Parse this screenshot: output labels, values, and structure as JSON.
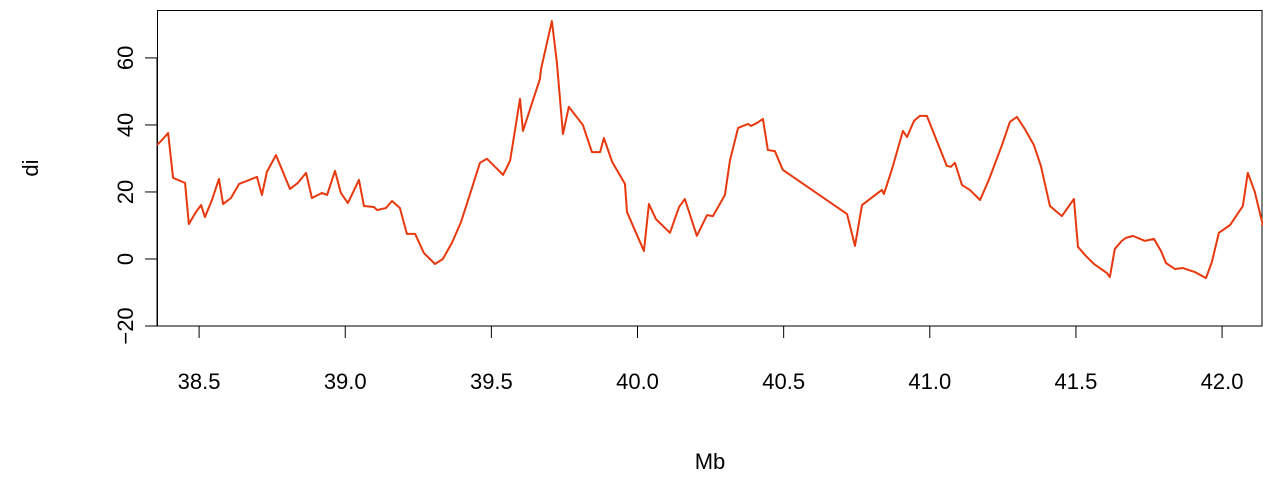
{
  "chart_data": {
    "type": "line",
    "x_label": "Mb",
    "y_label": "di",
    "xlim": [
      38.356,
      42.14
    ],
    "ylim": [
      -20,
      74.3
    ],
    "xticks": [
      38.5,
      {
        "value": 39.0,
        "label": "39.0"
      },
      39.5,
      {
        "value": 40.0,
        "label": "40.0"
      },
      40.5,
      {
        "value": 41.0,
        "label": "41.0"
      },
      41.5,
      {
        "value": 42.0,
        "label": "42.0"
      }
    ],
    "yticks": [
      {
        "value": -20,
        "label": "−20"
      },
      0,
      20,
      40,
      60
    ],
    "grid": false,
    "color": "#e8380d",
    "x": [
      38.356,
      38.373,
      38.394,
      38.411,
      38.452,
      38.465,
      38.489,
      38.507,
      38.52,
      38.544,
      38.568,
      38.582,
      38.609,
      38.637,
      38.698,
      38.715,
      38.732,
      38.763,
      38.811,
      38.838,
      38.866,
      38.886,
      38.92,
      38.938,
      38.965,
      38.985,
      39.009,
      39.047,
      39.064,
      39.098,
      39.109,
      39.139,
      39.16,
      39.187,
      39.211,
      39.239,
      39.269,
      39.307,
      39.334,
      39.365,
      39.396,
      39.427,
      39.461,
      39.485,
      39.516,
      39.54,
      39.564,
      39.598,
      39.608,
      39.666,
      39.67,
      39.707,
      39.724,
      39.745,
      39.765,
      39.813,
      39.844,
      39.872,
      39.885,
      39.913,
      39.957,
      39.964,
      40.022,
      40.039,
      40.063,
      40.111,
      40.142,
      40.162,
      40.203,
      40.238,
      40.258,
      40.299,
      40.316,
      40.344,
      40.378,
      40.388,
      40.409,
      40.429,
      40.446,
      40.47,
      40.497,
      40.717,
      40.744,
      40.768,
      40.836,
      40.843,
      40.87,
      40.908,
      40.922,
      40.946,
      40.966,
      40.99,
      41.058,
      41.072,
      41.086,
      41.11,
      41.137,
      41.172,
      41.202,
      41.247,
      41.274,
      41.298,
      41.325,
      41.356,
      41.38,
      41.411,
      41.452,
      41.493,
      41.507,
      41.534,
      41.562,
      41.606,
      41.616,
      41.633,
      41.657,
      41.671,
      41.695,
      41.736,
      41.767,
      41.791,
      41.808,
      41.839,
      41.866,
      41.907,
      41.945,
      41.965,
      41.989,
      42.027,
      42.071,
      42.088,
      42.112,
      42.14
    ],
    "values": [
      34.0,
      35.5,
      37.6,
      24.2,
      22.7,
      10.4,
      14.0,
      16.1,
      12.5,
      17.6,
      23.9,
      16.4,
      18.2,
      22.4,
      24.5,
      19.1,
      26.0,
      31.0,
      20.9,
      22.7,
      25.7,
      18.2,
      19.7,
      19.1,
      26.3,
      19.7,
      16.7,
      23.6,
      15.8,
      15.5,
      14.6,
      15.2,
      17.3,
      15.2,
      7.5,
      7.5,
      1.8,
      -1.5,
      0,
      4.8,
      11.0,
      19.4,
      28.7,
      29.9,
      27.2,
      25.1,
      29.3,
      47.8,
      38.2,
      53.7,
      56.7,
      71.0,
      58.8,
      37.3,
      45.4,
      40.0,
      31.9,
      31.9,
      36.1,
      29.0,
      22.4,
      14.0,
      2.4,
      16.4,
      11.9,
      7.8,
      15.5,
      17.9,
      6.9,
      13.1,
      12.8,
      19.1,
      29.3,
      39.1,
      40.3,
      39.7,
      40.6,
      41.8,
      32.5,
      32.2,
      26.6,
      13.4,
      3.9,
      16.1,
      20.6,
      19.4,
      26.6,
      38.2,
      36.4,
      41.2,
      42.7,
      42.7,
      27.8,
      27.5,
      28.7,
      22.1,
      20.6,
      17.6,
      23.6,
      34.0,
      40.9,
      42.4,
      38.8,
      34.0,
      27.8,
      15.8,
      12.8,
      17.9,
      3.6,
      0.9,
      -1.5,
      -4.2,
      -5.4,
      3.0,
      5.4,
      6.3,
      6.9,
      5.4,
      6.0,
      2.4,
      -1.2,
      -3.0,
      -2.7,
      -3.9,
      -5.7,
      -0.9,
      7.8,
      10.1,
      15.8,
      25.7,
      20.0,
      9.9
    ]
  }
}
